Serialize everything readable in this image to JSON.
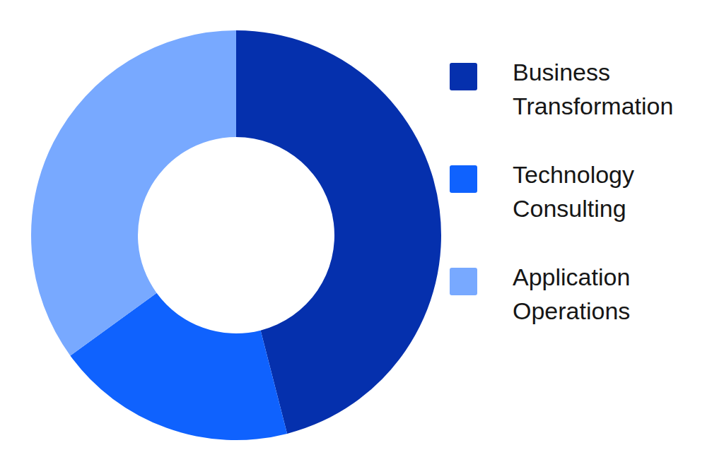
{
  "chart_data": {
    "type": "pie",
    "categories": [
      "Business Transformation",
      "Technology Consulting",
      "Application Operations"
    ],
    "values": [
      46,
      19,
      35
    ],
    "colors": [
      "#0530ad",
      "#0f62fe",
      "#78a9ff"
    ],
    "legend": "right"
  }
}
